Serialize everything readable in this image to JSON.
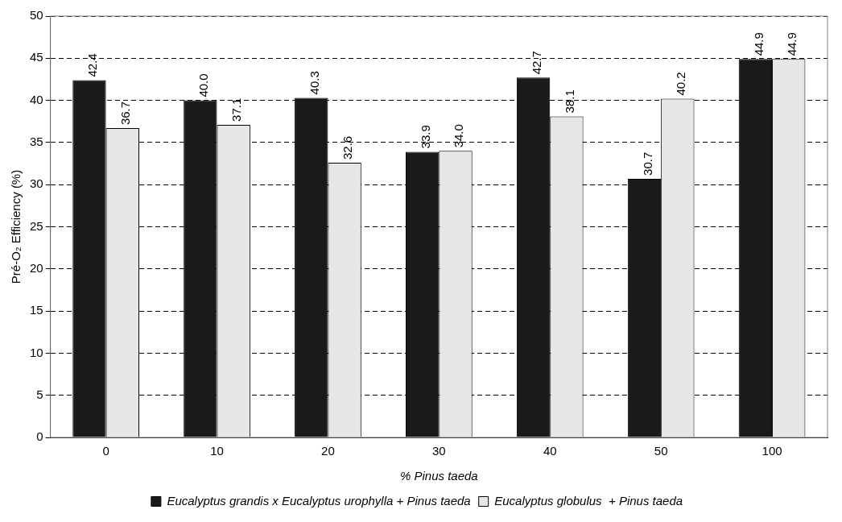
{
  "chart_data": {
    "type": "bar",
    "xlabel": "% Pinus taeda",
    "ylabel": "Pré-O₂ Efficiency (%)",
    "categories": [
      "0",
      "10",
      "20",
      "30",
      "40",
      "50",
      "100"
    ],
    "series": [
      {
        "name": "Eucalyptus grandis x Eucalyptus urophylla + Pinus taeda",
        "color": "#1a1a1a",
        "values": [
          42.4,
          40.0,
          40.3,
          33.9,
          42.7,
          30.7,
          44.9
        ]
      },
      {
        "name": "Eucalyptus globulus  + Pinus taeda",
        "color": "#e6e6e6",
        "values": [
          36.7,
          37.1,
          32.6,
          34.0,
          38.1,
          40.2,
          44.9
        ]
      }
    ],
    "value_labels": [
      [
        "42.4",
        "40.0",
        "40.3",
        "33.9",
        "42.7",
        "30.7",
        "44.9"
      ],
      [
        "36.7",
        "37.1",
        "32.6",
        "34.0",
        "38.1",
        "40.2",
        "44.9"
      ]
    ],
    "ylim": [
      0,
      50
    ],
    "yticks": [
      0,
      5,
      10,
      15,
      20,
      25,
      30,
      35,
      40,
      45,
      50
    ],
    "grid": "y",
    "legend": "bottom"
  }
}
